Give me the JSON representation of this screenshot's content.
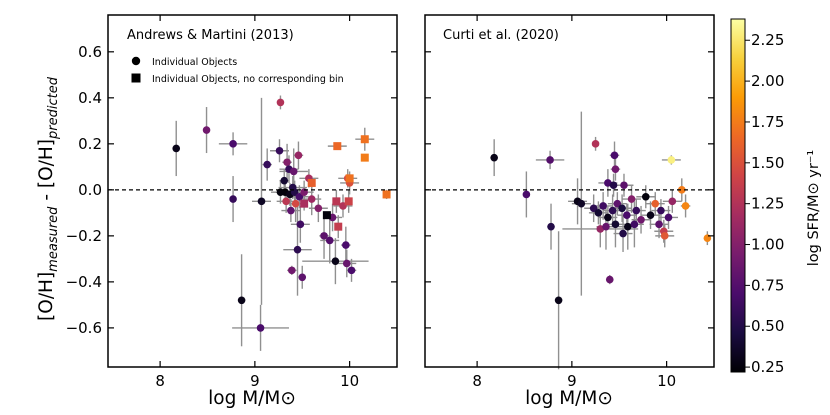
{
  "chart_data": [
    {
      "type": "scatter",
      "panel": "left",
      "title": "Andrews & Martini (2013)",
      "xlabel": "log M/M⊙",
      "ylabel_main": "[O/H]",
      "ylabel_sub1": "measured",
      "ylabel_mid": " - [O/H]",
      "ylabel_sub2": "predicted",
      "xlim": [
        7.45,
        10.5
      ],
      "ylim": [
        -0.77,
        0.76
      ],
      "xticks": [
        8,
        9,
        10
      ],
      "yticks": [
        -0.6,
        -0.4,
        -0.2,
        0.0,
        0.2,
        0.4,
        0.6
      ],
      "ytick_labels": [
        "−0.6",
        "−0.4",
        "−0.2",
        "0.0",
        "0.2",
        "0.4",
        "0.6"
      ],
      "xtick_labels": [
        "8",
        "9",
        "10"
      ],
      "reference_line": 0.0,
      "legend": [
        {
          "marker": "circle",
          "label": "Individual Objects"
        },
        {
          "marker": "square",
          "label": "Individual Objects, no corresponding bin"
        }
      ],
      "points": [
        {
          "x": 8.17,
          "y": 0.18,
          "xerr": 0.0,
          "yerr": 0.12,
          "sfr": 0.3,
          "marker": "circle"
        },
        {
          "x": 8.49,
          "y": 0.26,
          "xerr": 0.0,
          "yerr": 0.1,
          "sfr": 0.9,
          "marker": "circle"
        },
        {
          "x": 8.77,
          "y": 0.2,
          "xerr": 0.15,
          "yerr": 0.05,
          "sfr": 0.7,
          "marker": "circle"
        },
        {
          "x": 8.77,
          "y": -0.04,
          "xerr": 0.0,
          "yerr": 0.1,
          "sfr": 0.6,
          "marker": "circle"
        },
        {
          "x": 8.86,
          "y": -0.48,
          "xerr": 0.0,
          "yerr": 0.2,
          "sfr": 0.3,
          "marker": "circle"
        },
        {
          "x": 9.06,
          "y": -0.6,
          "xerr": 0.3,
          "yerr": 0.1,
          "sfr": 0.7,
          "marker": "circle"
        },
        {
          "x": 9.07,
          "y": -0.05,
          "xerr": 0.1,
          "yerr": 0.45,
          "sfr": 0.35,
          "marker": "circle"
        },
        {
          "x": 9.13,
          "y": 0.11,
          "xerr": 0.05,
          "yerr": 0.07,
          "sfr": 0.6,
          "marker": "circle"
        },
        {
          "x": 9.27,
          "y": 0.38,
          "xerr": 0.0,
          "yerr": 0.03,
          "sfr": 1.25,
          "marker": "circle"
        },
        {
          "x": 9.26,
          "y": 0.17,
          "xerr": 0.1,
          "yerr": 0.05,
          "sfr": 0.6,
          "marker": "circle"
        },
        {
          "x": 9.34,
          "y": 0.12,
          "xerr": 0.05,
          "yerr": 0.08,
          "sfr": 1.0,
          "marker": "circle"
        },
        {
          "x": 9.36,
          "y": 0.09,
          "xerr": 0.1,
          "yerr": 0.06,
          "sfr": 0.6,
          "marker": "circle"
        },
        {
          "x": 9.41,
          "y": 0.08,
          "xerr": 0.15,
          "yerr": 0.1,
          "sfr": 0.85,
          "marker": "circle"
        },
        {
          "x": 9.46,
          "y": 0.15,
          "xerr": 0.05,
          "yerr": 0.06,
          "sfr": 1.1,
          "marker": "circle"
        },
        {
          "x": 9.31,
          "y": 0.04,
          "xerr": 0.05,
          "yerr": 0.05,
          "sfr": 0.4,
          "marker": "circle"
        },
        {
          "x": 9.4,
          "y": 0.01,
          "xerr": 0.15,
          "yerr": 0.05,
          "sfr": 0.5,
          "marker": "circle"
        },
        {
          "x": 9.27,
          "y": -0.01,
          "xerr": 0.1,
          "yerr": 0.05,
          "sfr": 0.25,
          "marker": "circle"
        },
        {
          "x": 9.32,
          "y": -0.01,
          "xerr": 0.1,
          "yerr": 0.05,
          "sfr": 0.25,
          "marker": "circle"
        },
        {
          "x": 9.37,
          "y": -0.02,
          "xerr": 0.1,
          "yerr": 0.05,
          "sfr": 0.3,
          "marker": "circle"
        },
        {
          "x": 9.42,
          "y": -0.01,
          "xerr": 0.1,
          "yerr": 0.05,
          "sfr": 0.5,
          "marker": "circle"
        },
        {
          "x": 9.47,
          "y": -0.03,
          "xerr": 0.1,
          "yerr": 0.05,
          "sfr": 0.7,
          "marker": "circle"
        },
        {
          "x": 9.52,
          "y": -0.01,
          "xerr": 0.1,
          "yerr": 0.05,
          "sfr": 0.95,
          "marker": "circle"
        },
        {
          "x": 9.57,
          "y": 0.05,
          "xerr": 0.1,
          "yerr": 0.04,
          "sfr": 1.2,
          "marker": "circle"
        },
        {
          "x": 9.33,
          "y": -0.05,
          "xerr": 0.1,
          "yerr": 0.05,
          "sfr": 1.3,
          "marker": "circle"
        },
        {
          "x": 9.43,
          "y": -0.06,
          "xerr": 0.1,
          "yerr": 0.08,
          "sfr": 1.45,
          "marker": "circle"
        },
        {
          "x": 9.6,
          "y": -0.04,
          "xerr": 0.1,
          "yerr": 0.07,
          "sfr": 1.15,
          "marker": "circle"
        },
        {
          "x": 9.38,
          "y": -0.09,
          "xerr": 0.1,
          "yerr": 0.05,
          "sfr": 0.8,
          "marker": "circle"
        },
        {
          "x": 9.48,
          "y": -0.15,
          "xerr": 0.1,
          "yerr": 0.08,
          "sfr": 0.65,
          "marker": "circle"
        },
        {
          "x": 9.45,
          "y": -0.26,
          "xerr": 0.15,
          "yerr": 0.2,
          "sfr": 0.55,
          "marker": "circle"
        },
        {
          "x": 9.39,
          "y": -0.35,
          "xerr": 0.05,
          "yerr": 0.02,
          "sfr": 0.9,
          "marker": "circle"
        },
        {
          "x": 9.5,
          "y": -0.38,
          "xerr": 0.0,
          "yerr": 0.05,
          "sfr": 0.8,
          "marker": "circle"
        },
        {
          "x": 9.67,
          "y": -0.08,
          "xerr": 0.1,
          "yerr": 0.06,
          "sfr": 1.0,
          "marker": "circle"
        },
        {
          "x": 9.73,
          "y": -0.2,
          "xerr": 0.05,
          "yerr": 0.1,
          "sfr": 0.8,
          "marker": "circle"
        },
        {
          "x": 9.79,
          "y": -0.22,
          "xerr": 0.1,
          "yerr": 0.1,
          "sfr": 0.75,
          "marker": "circle"
        },
        {
          "x": 9.82,
          "y": -0.12,
          "xerr": 0.1,
          "yerr": 0.06,
          "sfr": 0.85,
          "marker": "circle"
        },
        {
          "x": 9.85,
          "y": -0.31,
          "xerr": 0.35,
          "yerr": 0.1,
          "sfr": 0.3,
          "marker": "circle"
        },
        {
          "x": 9.96,
          "y": -0.24,
          "xerr": 0.05,
          "yerr": 0.08,
          "sfr": 0.7,
          "marker": "circle"
        },
        {
          "x": 9.97,
          "y": -0.32,
          "xerr": 0.1,
          "yerr": 0.06,
          "sfr": 0.85,
          "marker": "circle"
        },
        {
          "x": 10.02,
          "y": -0.35,
          "xerr": 0.05,
          "yerr": 0.05,
          "sfr": 0.7,
          "marker": "circle"
        },
        {
          "x": 9.98,
          "y": 0.05,
          "xerr": 0.1,
          "yerr": 0.04,
          "sfr": 1.45,
          "marker": "circle"
        },
        {
          "x": 10.0,
          "y": 0.03,
          "xerr": 0.1,
          "yerr": 0.05,
          "sfr": 1.5,
          "marker": "circle"
        },
        {
          "x": 9.93,
          "y": -0.07,
          "xerr": 0.1,
          "yerr": 0.05,
          "sfr": 1.25,
          "marker": "circle"
        },
        {
          "x": 9.6,
          "y": 0.03,
          "xerr": 0.0,
          "yerr": 0.03,
          "sfr": 1.6,
          "marker": "square"
        },
        {
          "x": 9.52,
          "y": -0.06,
          "xerr": 0.0,
          "yerr": 0.03,
          "sfr": 1.2,
          "marker": "square"
        },
        {
          "x": 9.76,
          "y": -0.11,
          "xerr": 0.0,
          "yerr": 0.0,
          "sfr": 0.25,
          "marker": "square"
        },
        {
          "x": 9.87,
          "y": 0.19,
          "xerr": 0.1,
          "yerr": 0.0,
          "sfr": 1.65,
          "marker": "square"
        },
        {
          "x": 10.16,
          "y": 0.22,
          "xerr": 0.1,
          "yerr": 0.05,
          "sfr": 1.7,
          "marker": "square"
        },
        {
          "x": 10.16,
          "y": 0.14,
          "xerr": 0.0,
          "yerr": 0.0,
          "sfr": 1.75,
          "marker": "square"
        },
        {
          "x": 9.86,
          "y": -0.05,
          "xerr": 0.0,
          "yerr": 0.05,
          "sfr": 1.3,
          "marker": "square"
        },
        {
          "x": 9.88,
          "y": -0.16,
          "xerr": 0.0,
          "yerr": 0.05,
          "sfr": 1.35,
          "marker": "square"
        },
        {
          "x": 10.0,
          "y": 0.05,
          "xerr": 0.0,
          "yerr": 0.0,
          "sfr": 1.7,
          "marker": "square"
        },
        {
          "x": 10.39,
          "y": -0.02,
          "xerr": 0.0,
          "yerr": 0.02,
          "sfr": 1.7,
          "marker": "square"
        },
        {
          "x": 9.99,
          "y": -0.05,
          "xerr": 0.0,
          "yerr": 0.05,
          "sfr": 1.4,
          "marker": "square"
        }
      ]
    },
    {
      "type": "scatter",
      "panel": "right",
      "title": "Curti et al. (2020)",
      "xlabel": "log M/M⊙",
      "xlim": [
        7.45,
        10.5
      ],
      "ylim": [
        -0.77,
        0.76
      ],
      "xticks": [
        8,
        9,
        10
      ],
      "xtick_labels": [
        "8",
        "9",
        "10"
      ],
      "reference_line": 0.0,
      "points": [
        {
          "x": 8.18,
          "y": 0.14,
          "xerr": 0.0,
          "yerr": 0.08,
          "sfr": 0.3,
          "marker": "circle"
        },
        {
          "x": 8.52,
          "y": -0.02,
          "xerr": 0.0,
          "yerr": 0.1,
          "sfr": 0.7,
          "marker": "circle"
        },
        {
          "x": 8.77,
          "y": 0.13,
          "xerr": 0.15,
          "yerr": 0.04,
          "sfr": 0.75,
          "marker": "circle"
        },
        {
          "x": 8.78,
          "y": -0.16,
          "xerr": 0.0,
          "yerr": 0.1,
          "sfr": 0.5,
          "marker": "circle"
        },
        {
          "x": 8.86,
          "y": -0.48,
          "xerr": 0.0,
          "yerr": 0.3,
          "sfr": 0.3,
          "marker": "circle"
        },
        {
          "x": 9.25,
          "y": 0.2,
          "xerr": 0.0,
          "yerr": 0.03,
          "sfr": 1.25,
          "marker": "circle"
        },
        {
          "x": 9.45,
          "y": 0.15,
          "xerr": 0.05,
          "yerr": 0.06,
          "sfr": 0.7,
          "marker": "circle"
        },
        {
          "x": 9.46,
          "y": 0.09,
          "xerr": 0.05,
          "yerr": 0.05,
          "sfr": 0.9,
          "marker": "circle"
        },
        {
          "x": 9.38,
          "y": 0.03,
          "xerr": 0.1,
          "yerr": 0.06,
          "sfr": 0.7,
          "marker": "circle"
        },
        {
          "x": 9.44,
          "y": 0.02,
          "xerr": 0.05,
          "yerr": 0.05,
          "sfr": 0.5,
          "marker": "circle"
        },
        {
          "x": 9.55,
          "y": 0.02,
          "xerr": 0.1,
          "yerr": 0.05,
          "sfr": 0.8,
          "marker": "circle"
        },
        {
          "x": 9.06,
          "y": -0.05,
          "xerr": 0.1,
          "yerr": 0.1,
          "sfr": 0.3,
          "marker": "circle"
        },
        {
          "x": 9.1,
          "y": -0.06,
          "xerr": 0.1,
          "yerr": 0.4,
          "sfr": 0.35,
          "marker": "circle"
        },
        {
          "x": 9.23,
          "y": -0.08,
          "xerr": 0.1,
          "yerr": 0.06,
          "sfr": 0.55,
          "marker": "circle"
        },
        {
          "x": 9.28,
          "y": -0.1,
          "xerr": 0.1,
          "yerr": 0.05,
          "sfr": 0.4,
          "marker": "circle"
        },
        {
          "x": 9.33,
          "y": -0.07,
          "xerr": 0.1,
          "yerr": 0.06,
          "sfr": 0.65,
          "marker": "circle"
        },
        {
          "x": 9.38,
          "y": -0.12,
          "xerr": 0.1,
          "yerr": 0.05,
          "sfr": 0.3,
          "marker": "circle"
        },
        {
          "x": 9.43,
          "y": -0.09,
          "xerr": 0.1,
          "yerr": 0.07,
          "sfr": 0.55,
          "marker": "circle"
        },
        {
          "x": 9.48,
          "y": -0.06,
          "xerr": 0.1,
          "yerr": 0.05,
          "sfr": 0.8,
          "marker": "circle"
        },
        {
          "x": 9.53,
          "y": -0.08,
          "xerr": 0.1,
          "yerr": 0.06,
          "sfr": 0.45,
          "marker": "circle"
        },
        {
          "x": 9.58,
          "y": -0.11,
          "xerr": 0.1,
          "yerr": 0.05,
          "sfr": 0.7,
          "marker": "circle"
        },
        {
          "x": 9.63,
          "y": -0.04,
          "xerr": 0.1,
          "yerr": 0.06,
          "sfr": 1.0,
          "marker": "circle"
        },
        {
          "x": 9.68,
          "y": -0.09,
          "xerr": 0.1,
          "yerr": 0.05,
          "sfr": 0.6,
          "marker": "circle"
        },
        {
          "x": 9.73,
          "y": -0.13,
          "xerr": 0.1,
          "yerr": 0.06,
          "sfr": 0.9,
          "marker": "circle"
        },
        {
          "x": 9.78,
          "y": -0.03,
          "xerr": 0.1,
          "yerr": 0.05,
          "sfr": 0.25,
          "marker": "circle"
        },
        {
          "x": 9.83,
          "y": -0.11,
          "xerr": 0.1,
          "yerr": 0.06,
          "sfr": 0.3,
          "marker": "circle"
        },
        {
          "x": 9.88,
          "y": -0.06,
          "xerr": 0.1,
          "yerr": 0.05,
          "sfr": 1.6,
          "marker": "circle"
        },
        {
          "x": 9.3,
          "y": -0.17,
          "xerr": 0.4,
          "yerr": 0.08,
          "sfr": 1.1,
          "marker": "circle"
        },
        {
          "x": 9.36,
          "y": -0.16,
          "xerr": 0.1,
          "yerr": 0.1,
          "sfr": 0.85,
          "marker": "circle"
        },
        {
          "x": 9.46,
          "y": -0.15,
          "xerr": 0.1,
          "yerr": 0.1,
          "sfr": 0.4,
          "marker": "circle"
        },
        {
          "x": 9.54,
          "y": -0.19,
          "xerr": 0.1,
          "yerr": 0.08,
          "sfr": 0.5,
          "marker": "circle"
        },
        {
          "x": 9.59,
          "y": -0.16,
          "xerr": 0.1,
          "yerr": 0.1,
          "sfr": 0.3,
          "marker": "circle"
        },
        {
          "x": 9.66,
          "y": -0.15,
          "xerr": 0.1,
          "yerr": 0.1,
          "sfr": 0.65,
          "marker": "circle"
        },
        {
          "x": 9.4,
          "y": -0.39,
          "xerr": 0.0,
          "yerr": 0.02,
          "sfr": 0.85,
          "marker": "circle"
        },
        {
          "x": 9.92,
          "y": -0.15,
          "xerr": 0.1,
          "yerr": 0.06,
          "sfr": 0.8,
          "marker": "circle"
        },
        {
          "x": 9.97,
          "y": -0.18,
          "xerr": 0.1,
          "yerr": 0.05,
          "sfr": 1.35,
          "marker": "circle"
        },
        {
          "x": 9.98,
          "y": -0.2,
          "xerr": 0.1,
          "yerr": 0.05,
          "sfr": 1.55,
          "marker": "circle"
        },
        {
          "x": 9.94,
          "y": -0.09,
          "xerr": 0.1,
          "yerr": 0.05,
          "sfr": 0.6,
          "marker": "circle"
        },
        {
          "x": 10.02,
          "y": -0.12,
          "xerr": 0.1,
          "yerr": 0.05,
          "sfr": 0.7,
          "marker": "circle"
        },
        {
          "x": 10.06,
          "y": -0.05,
          "xerr": 0.1,
          "yerr": 0.05,
          "sfr": 1.1,
          "marker": "circle"
        },
        {
          "x": 10.05,
          "y": 0.13,
          "xerr": 0.1,
          "yerr": 0.02,
          "sfr": 2.3,
          "marker": "circle"
        },
        {
          "x": 10.16,
          "y": 0.0,
          "xerr": 0.05,
          "yerr": 0.05,
          "sfr": 1.75,
          "marker": "circle"
        },
        {
          "x": 10.2,
          "y": -0.07,
          "xerr": 0.05,
          "yerr": 0.05,
          "sfr": 1.8,
          "marker": "circle"
        },
        {
          "x": 10.43,
          "y": -0.21,
          "xerr": 0.0,
          "yerr": 0.03,
          "sfr": 1.8,
          "marker": "circle"
        }
      ]
    }
  ],
  "colorbar": {
    "label": "log SFR/M⊙ yr⁻¹",
    "range": [
      0.22,
      2.38
    ],
    "ticks": [
      0.25,
      0.5,
      0.75,
      1.0,
      1.25,
      1.5,
      1.75,
      2.0,
      2.25
    ],
    "tick_labels": [
      "0.25",
      "0.50",
      "0.75",
      "1.00",
      "1.25",
      "1.50",
      "1.75",
      "2.00",
      "2.25"
    ],
    "colormap": "inferno",
    "stops": [
      "#000004",
      "#1b0c41",
      "#4a0c6b",
      "#781c6d",
      "#a52c60",
      "#cf4446",
      "#ed6925",
      "#fb9b06",
      "#f7d13d",
      "#fcffa4"
    ]
  },
  "styles": {
    "errorbar_color": "#909090",
    "frame_color": "#000000"
  }
}
